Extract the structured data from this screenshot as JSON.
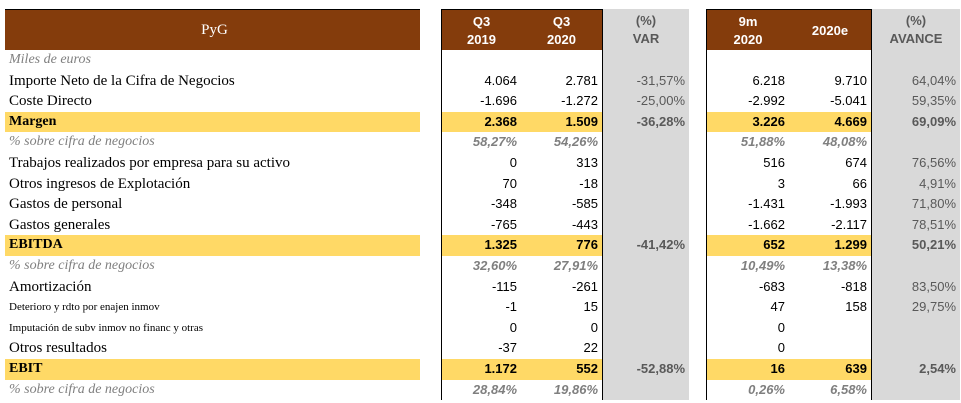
{
  "header": {
    "title": "PyG",
    "q3_2019": [
      "Q3",
      "2019"
    ],
    "q3_2020": [
      "Q3",
      "2020"
    ],
    "var": [
      "(%)",
      "VAR"
    ],
    "m9_2020": [
      "9m",
      "2020"
    ],
    "e2020": "2020e",
    "avance": [
      "(%)",
      "AVANCE"
    ]
  },
  "rows": [
    {
      "label": "Miles de euros",
      "style": "italic",
      "v": [
        "",
        "",
        "",
        "",
        "",
        ""
      ]
    },
    {
      "label": "Importe Neto de la Cifra de Negocios",
      "style": "normal",
      "v": [
        "4.064",
        "2.781",
        "-31,57%",
        "6.218",
        "9.710",
        "64,04%"
      ]
    },
    {
      "label": "Coste Directo",
      "style": "normal",
      "v": [
        "-1.696",
        "-1.272",
        "-25,00%",
        "-2.992",
        "-5.041",
        "59,35%"
      ]
    },
    {
      "label": "Margen",
      "style": "highlight",
      "v": [
        "2.368",
        "1.509",
        "-36,28%",
        "3.226",
        "4.669",
        "69,09%"
      ]
    },
    {
      "label": "% sobre cifra de negocios",
      "style": "italic",
      "v": [
        "58,27%",
        "54,26%",
        "",
        "51,88%",
        "48,08%",
        ""
      ]
    },
    {
      "label": "Trabajos realizados por empresa para su activo",
      "style": "normal",
      "v": [
        "0",
        "313",
        "",
        "516",
        "674",
        "76,56%"
      ]
    },
    {
      "label": "Otros ingresos de Explotación",
      "style": "normal",
      "v": [
        "70",
        "-18",
        "",
        "3",
        "66",
        "4,91%"
      ]
    },
    {
      "label": "Gastos de personal",
      "style": "normal",
      "v": [
        "-348",
        "-585",
        "",
        "-1.431",
        "-1.993",
        "71,80%"
      ]
    },
    {
      "label": "Gastos generales",
      "style": "normal",
      "v": [
        "-765",
        "-443",
        "",
        "-1.662",
        "-2.117",
        "78,51%"
      ]
    },
    {
      "label": "EBITDA",
      "style": "highlight",
      "v": [
        "1.325",
        "776",
        "-41,42%",
        "652",
        "1.299",
        "50,21%"
      ]
    },
    {
      "label": "% sobre cifra de negocios",
      "style": "italic",
      "v": [
        "32,60%",
        "27,91%",
        "",
        "10,49%",
        "13,38%",
        ""
      ]
    },
    {
      "label": "Amortización",
      "style": "normal",
      "v": [
        "-115",
        "-261",
        "",
        "-683",
        "-818",
        "83,50%"
      ]
    },
    {
      "label": "Deterioro y rdto por enajen inmov",
      "style": "small",
      "v": [
        "-1",
        "15",
        "",
        "47",
        "158",
        "29,75%"
      ]
    },
    {
      "label": "Imputación de subv inmov no financ y otras",
      "style": "small",
      "v": [
        "0",
        "0",
        "",
        "0",
        "",
        ""
      ]
    },
    {
      "label": "Otros resultados",
      "style": "normal",
      "v": [
        "-37",
        "22",
        "",
        "0",
        "",
        ""
      ]
    },
    {
      "label": "EBIT",
      "style": "highlight",
      "v": [
        "1.172",
        "552",
        "-52,88%",
        "16",
        "639",
        "2,54%"
      ]
    },
    {
      "label": "% sobre cifra de negocios",
      "style": "italic",
      "v": [
        "28,84%",
        "19,86%",
        "",
        "0,26%",
        "6,58%",
        ""
      ]
    }
  ]
}
